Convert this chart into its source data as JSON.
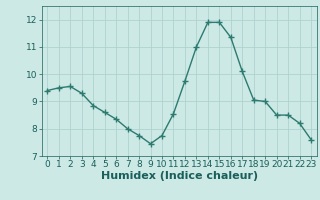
{
  "x": [
    0,
    1,
    2,
    3,
    4,
    5,
    6,
    7,
    8,
    9,
    10,
    11,
    12,
    13,
    14,
    15,
    16,
    17,
    18,
    19,
    20,
    21,
    22,
    23
  ],
  "y": [
    9.4,
    9.5,
    9.55,
    9.3,
    8.85,
    8.6,
    8.35,
    8.0,
    7.75,
    7.45,
    7.75,
    8.55,
    9.75,
    11.0,
    11.9,
    11.9,
    11.35,
    10.1,
    9.05,
    9.0,
    8.5,
    8.5,
    8.2,
    7.6
  ],
  "line_color": "#2d7a70",
  "marker": "+",
  "marker_size": 4,
  "line_width": 1.0,
  "bg_color": "#cce9e5",
  "grid_color": "#aacfca",
  "tick_color": "#1a5f5a",
  "xlabel": "Humidex (Indice chaleur)",
  "xlabel_fontsize": 8,
  "xlim": [
    -0.5,
    23.5
  ],
  "ylim": [
    7,
    12.5
  ],
  "yticks": [
    7,
    8,
    9,
    10,
    11,
    12
  ],
  "xticks": [
    0,
    1,
    2,
    3,
    4,
    5,
    6,
    7,
    8,
    9,
    10,
    11,
    12,
    13,
    14,
    15,
    16,
    17,
    18,
    19,
    20,
    21,
    22,
    23
  ],
  "tick_fontsize": 6.5
}
